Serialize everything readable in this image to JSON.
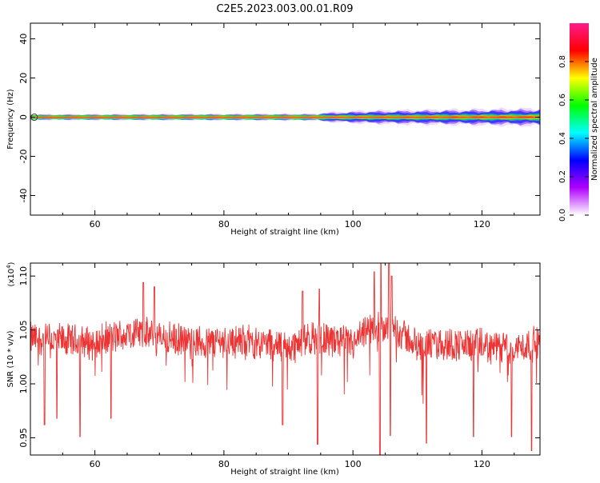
{
  "title": "C2E5.2023.003.00.01.R09",
  "chart_data": [
    {
      "type": "heatmap",
      "xlabel": "Height of straight line (km)",
      "ylabel": "Frequency (Hz)",
      "xlim": [
        50,
        129
      ],
      "ylim": [
        -50,
        48
      ],
      "xticks": [
        "60",
        "80",
        "100",
        "120"
      ],
      "yticks": [
        "40",
        "20",
        "0",
        "-20",
        "-40"
      ],
      "xtick_values": [
        60,
        80,
        100,
        120
      ],
      "ytick_values": [
        40,
        20,
        0,
        -20,
        -40
      ],
      "ridge": {
        "center_frequency": 0,
        "core_halfwidth": [
          [
            50,
            0.6
          ],
          [
            100,
            0.7
          ],
          [
            129,
            1.0
          ]
        ],
        "spread_halfwidth": [
          [
            50,
            1.5
          ],
          [
            95,
            1.8
          ],
          [
            102,
            2.6
          ],
          [
            129,
            3.5
          ]
        ]
      },
      "colorbar": {
        "label": "Normalized spectral amplitude",
        "ticks": [
          "0.0",
          "0.2",
          "0.4",
          "0.6",
          "0.8"
        ],
        "tick_values": [
          0.0,
          0.2,
          0.4,
          0.6,
          0.8
        ],
        "range": [
          0,
          1
        ],
        "colors": [
          "#ffffff",
          "#b000ff",
          "#0000ff",
          "#00ffff",
          "#00ff00",
          "#ffff00",
          "#ff0000",
          "#ff1a8c"
        ]
      }
    },
    {
      "type": "line",
      "xlabel": "Height of straight line (km)",
      "ylabel": "SNR (10 * v/v)",
      "multiplier": "(x10",
      "multiplier_exp": "4",
      "multiplier_close": ")",
      "xlim": [
        50,
        129
      ],
      "ylim": [
        0.934,
        1.112
      ],
      "xticks": [
        "60",
        "80",
        "100",
        "120"
      ],
      "yticks": [
        "1.10",
        "1.05",
        "1.00",
        "0.95"
      ],
      "xtick_values": [
        60,
        80,
        100,
        120
      ],
      "ytick_values": [
        1.1,
        1.05,
        1.0,
        0.95
      ],
      "color": "#ee3333",
      "samples": 1300,
      "baseline": [
        [
          50,
          1.042
        ],
        [
          55,
          1.04
        ],
        [
          60,
          1.038
        ],
        [
          66,
          1.048
        ],
        [
          70,
          1.043
        ],
        [
          75,
          1.038
        ],
        [
          80,
          1.04
        ],
        [
          85,
          1.039
        ],
        [
          90,
          1.034
        ],
        [
          95,
          1.044
        ],
        [
          100,
          1.036
        ],
        [
          103,
          1.052
        ],
        [
          106,
          1.054
        ],
        [
          110,
          1.035
        ],
        [
          115,
          1.037
        ],
        [
          120,
          1.035
        ],
        [
          125,
          1.033
        ],
        [
          129,
          1.038
        ]
      ],
      "noise_amplitude": 0.018,
      "peaks": [
        [
          67.5,
          1.094
        ],
        [
          69.2,
          1.09
        ],
        [
          92.2,
          1.086
        ],
        [
          94.8,
          1.088
        ],
        [
          103.3,
          1.104
        ],
        [
          104.3,
          1.112
        ],
        [
          105.6,
          1.112
        ],
        [
          106.0,
          1.1
        ]
      ],
      "dips": [
        [
          52.2,
          0.962
        ],
        [
          54.1,
          0.968
        ],
        [
          57.7,
          0.951
        ],
        [
          62.5,
          0.968
        ],
        [
          89.1,
          0.962
        ],
        [
          94.5,
          0.944
        ],
        [
          104.2,
          0.934
        ],
        [
          105.8,
          0.952
        ],
        [
          111.4,
          0.945
        ],
        [
          118.7,
          0.951
        ],
        [
          124.6,
          0.951
        ],
        [
          127.7,
          0.938
        ]
      ]
    }
  ]
}
